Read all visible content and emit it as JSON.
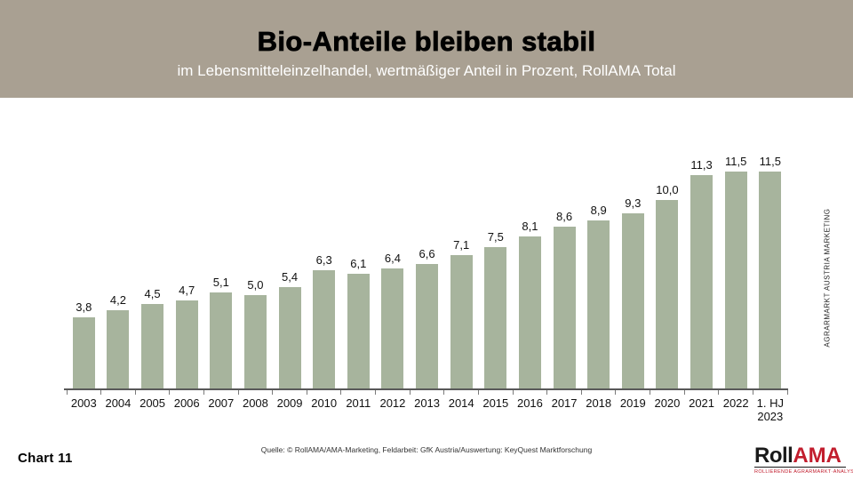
{
  "header": {
    "title": "Bio-Anteile bleiben stabil",
    "subtitle": "im Lebensmitteleinzelhandel, wertmäßiger Anteil in Prozent, RollAMA Total",
    "bg_color": "#a9a092",
    "title_color": "#000000",
    "subtitle_color": "#ffffff"
  },
  "chart_data": {
    "type": "bar",
    "title": "Bio-Anteile bleiben stabil",
    "subtitle": "im Lebensmitteleinzelhandel, wertmäßiger Anteil in Prozent, RollAMA Total",
    "unit": "Prozent (wertmäßiger Anteil)",
    "categories": [
      "2003",
      "2004",
      "2005",
      "2006",
      "2007",
      "2008",
      "2009",
      "2010",
      "2011",
      "2012",
      "2013",
      "2014",
      "2015",
      "2016",
      "2017",
      "2018",
      "2019",
      "2020",
      "2021",
      "2022",
      "1. HJ\n2023"
    ],
    "values": [
      3.8,
      4.2,
      4.5,
      4.7,
      5.1,
      5.0,
      5.4,
      6.3,
      6.1,
      6.4,
      6.6,
      7.1,
      7.5,
      8.1,
      8.6,
      8.9,
      9.3,
      10.0,
      11.3,
      11.5,
      11.5
    ],
    "value_labels": [
      "3,8",
      "4,2",
      "4,5",
      "4,7",
      "5,1",
      "5,0",
      "5,4",
      "6,3",
      "6,1",
      "6,4",
      "6,6",
      "7,1",
      "7,5",
      "8,1",
      "8,6",
      "8,9",
      "9,3",
      "10,0",
      "11,3",
      "11,5",
      "11,5"
    ],
    "bar_color": "#a7b49d",
    "ylim": [
      0,
      13
    ],
    "grid": false,
    "legend": false,
    "xlabel": "",
    "ylabel": ""
  },
  "side_caption": "AGRARMARKT AUSTRIA MARKETING",
  "footer": {
    "chart_number": "Chart 11",
    "source": "Quelle: © RollAMA/AMA-Marketing, Feldarbeit: GfK Austria/Auswertung: KeyQuest Marktforschung"
  },
  "logo": {
    "part1": "Roll",
    "part2": "AMA",
    "tagline": "ROLLIERENDE AGRARMARKT·ANALYSE",
    "red": "#c21d2d"
  }
}
